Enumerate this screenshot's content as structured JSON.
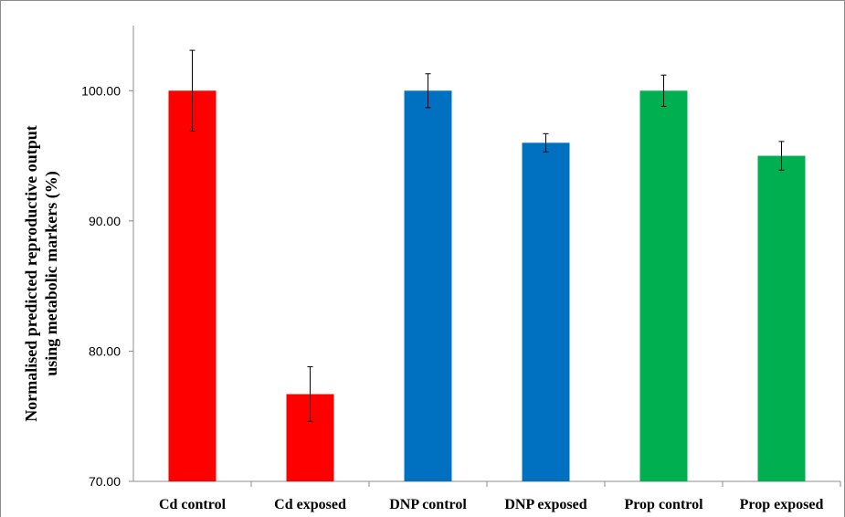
{
  "chart_data": {
    "type": "bar",
    "categories": [
      "Cd control",
      "Cd exposed",
      "DNP control",
      "DNP exposed",
      "Prop control",
      "Prop exposed"
    ],
    "values": [
      100.0,
      76.7,
      100.0,
      96.0,
      100.0,
      95.0
    ],
    "errors": [
      3.1,
      2.1,
      1.3,
      0.7,
      1.2,
      1.1
    ],
    "colors": [
      "#ff0000",
      "#ff0000",
      "#0070c0",
      "#0070c0",
      "#00b050",
      "#00b050"
    ],
    "ylabel_line1": "Normalised predicted reproductive output",
    "ylabel_line2": "using metabolic markers (%)",
    "xlabel": "",
    "ylim": [
      70,
      105
    ],
    "yticks": [
      70,
      80,
      90,
      100
    ],
    "ytick_labels": [
      "70.00",
      "80.00",
      "90.00",
      "100.00"
    ],
    "grid": false,
    "legend": "none"
  }
}
